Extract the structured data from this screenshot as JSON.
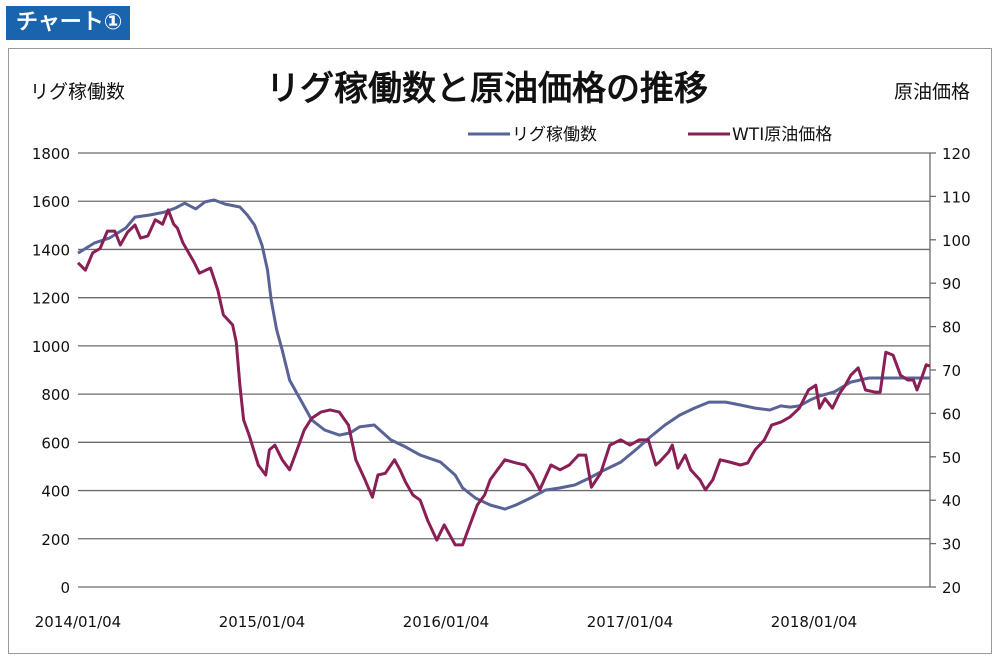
{
  "badge": "チャート①",
  "chart_data": {
    "type": "line",
    "title": "リグ稼働数と原油価格の推移",
    "ylabel_left": "リグ稼働数",
    "ylabel_right": "原油価格",
    "xlabel": "",
    "x_unit": "decimal year",
    "xlim": [
      2014.0,
      2018.63
    ],
    "ylim_left": [
      0,
      1800
    ],
    "ylim_right": [
      20,
      120
    ],
    "yticks_left": [
      "0",
      "200",
      "400",
      "600",
      "800",
      "1000",
      "1200",
      "1400",
      "1600",
      "1800"
    ],
    "yticks_right": [
      "20",
      "30",
      "40",
      "50",
      "60",
      "70",
      "80",
      "90",
      "100",
      "110",
      "120"
    ],
    "xticks": [
      {
        "x": 2014.0,
        "label": "2014/01/04"
      },
      {
        "x": 2015.0,
        "label": "2015/01/04"
      },
      {
        "x": 2016.0,
        "label": "2016/01/04"
      },
      {
        "x": 2017.0,
        "label": "2017/01/04"
      },
      {
        "x": 2018.0,
        "label": "2018/01/04"
      }
    ],
    "grid": true,
    "legend_position": "top-center",
    "series": [
      {
        "name": "リグ稼働数",
        "axis": "left",
        "color": "#5a6396",
        "x": [
          2014.0,
          2014.09,
          2014.17,
          2014.26,
          2014.31,
          2014.39,
          2014.47,
          2014.53,
          2014.58,
          2014.64,
          2014.69,
          2014.74,
          2014.8,
          2014.88,
          2014.92,
          2014.96,
          2015.0,
          2015.03,
          2015.05,
          2015.08,
          2015.11,
          2015.15,
          2015.21,
          2015.27,
          2015.34,
          2015.42,
          2015.48,
          2015.53,
          2015.61,
          2015.7,
          2015.78,
          2015.86,
          2015.97,
          2016.05,
          2016.09,
          2016.16,
          2016.24,
          2016.32,
          2016.38,
          2016.46,
          2016.54,
          2016.62,
          2016.7,
          2016.78,
          2016.86,
          2016.95,
          2017.03,
          2017.11,
          2017.19,
          2017.27,
          2017.35,
          2017.43,
          2017.52,
          2017.6,
          2017.68,
          2017.76,
          2017.82,
          2017.87,
          2017.92,
          2017.98,
          2018.03,
          2018.11,
          2018.2,
          2018.3,
          2018.41,
          2018.52,
          2018.63
        ],
        "values": [
          1385,
          1427,
          1447,
          1489,
          1534,
          1543,
          1555,
          1572,
          1592,
          1568,
          1597,
          1605,
          1588,
          1576,
          1543,
          1501,
          1418,
          1315,
          1190,
          1066,
          983,
          858,
          776,
          693,
          651,
          630,
          639,
          664,
          672,
          610,
          581,
          547,
          518,
          464,
          411,
          369,
          340,
          323,
          340,
          369,
          402,
          411,
          423,
          452,
          485,
          518,
          568,
          622,
          672,
          713,
          742,
          767,
          767,
          755,
          742,
          734,
          751,
          746,
          751,
          776,
          792,
          809,
          850,
          867,
          867,
          867,
          867
        ]
      },
      {
        "name": "WTI原油価格",
        "axis": "right",
        "color": "#8a1f55",
        "x": [
          2014.0,
          2014.04,
          2014.08,
          2014.12,
          2014.16,
          2014.2,
          2014.23,
          2014.27,
          2014.31,
          2014.34,
          2014.38,
          2014.42,
          2014.46,
          2014.49,
          2014.52,
          2014.54,
          2014.57,
          2014.63,
          2014.66,
          2014.72,
          2014.76,
          2014.79,
          2014.84,
          2014.86,
          2014.88,
          2014.9,
          2014.93,
          2014.98,
          2015.02,
          2015.04,
          2015.07,
          2015.11,
          2015.15,
          2015.18,
          2015.23,
          2015.27,
          2015.32,
          2015.37,
          2015.42,
          2015.47,
          2015.51,
          2015.56,
          2015.6,
          2015.63,
          2015.67,
          2015.72,
          2015.75,
          2015.78,
          2015.82,
          2015.86,
          2015.9,
          2015.95,
          2015.99,
          2016.05,
          2016.09,
          2016.13,
          2016.17,
          2016.21,
          2016.24,
          2016.28,
          2016.32,
          2016.38,
          2016.43,
          2016.47,
          2016.51,
          2016.57,
          2016.62,
          2016.67,
          2016.72,
          2016.76,
          2016.79,
          2016.84,
          2016.89,
          2016.95,
          2017.0,
          2017.05,
          2017.1,
          2017.14,
          2017.16,
          2017.21,
          2017.23,
          2017.26,
          2017.3,
          2017.33,
          2017.38,
          2017.41,
          2017.45,
          2017.49,
          2017.54,
          2017.6,
          2017.64,
          2017.68,
          2017.73,
          2017.77,
          2017.82,
          2017.87,
          2017.92,
          2017.97,
          2018.01,
          2018.03,
          2018.06,
          2018.1,
          2018.14,
          2018.17,
          2018.2,
          2018.24,
          2018.28,
          2018.33,
          2018.36,
          2018.39,
          2018.43,
          2018.47,
          2018.51,
          2018.54,
          2018.56,
          2018.59,
          2018.61,
          2018.63
        ],
        "values": [
          94.7,
          93.0,
          97,
          98,
          102,
          102,
          98.8,
          101.8,
          103.4,
          100.4,
          100.9,
          104.6,
          103.6,
          106.9,
          103.6,
          102.7,
          99.3,
          94.9,
          92.3,
          93.5,
          88.4,
          82.7,
          80.4,
          76.5,
          66.5,
          58.5,
          55,
          48.1,
          45.8,
          51.6,
          52.7,
          49.3,
          47,
          50.4,
          56.2,
          58.9,
          60.3,
          60.8,
          60.3,
          57.3,
          49.3,
          44.7,
          40.7,
          45.8,
          46.2,
          49.3,
          47,
          44.2,
          41.2,
          40,
          35.4,
          30.8,
          34.3,
          29.7,
          29.7,
          34.3,
          38.9,
          41.2,
          44.7,
          47,
          49.3,
          48.6,
          48.1,
          45.8,
          42.4,
          48.1,
          47,
          48.1,
          50.4,
          50.4,
          43,
          46.2,
          52.7,
          53.9,
          52.7,
          53.9,
          53.9,
          48.1,
          48.8,
          51.1,
          52.7,
          47.4,
          50.4,
          47,
          44.7,
          42.4,
          44.7,
          49.3,
          48.8,
          48.1,
          48.6,
          51.6,
          53.9,
          57.3,
          58,
          59.2,
          61.2,
          65.4,
          66.5,
          61.2,
          63.4,
          61.2,
          64.7,
          66.5,
          68.8,
          70.5,
          65.4,
          64.9,
          64.9,
          74.1,
          73.4,
          68.8,
          67.7,
          67.7,
          65.4,
          68.8,
          71.2,
          70.9
        ]
      }
    ]
  }
}
